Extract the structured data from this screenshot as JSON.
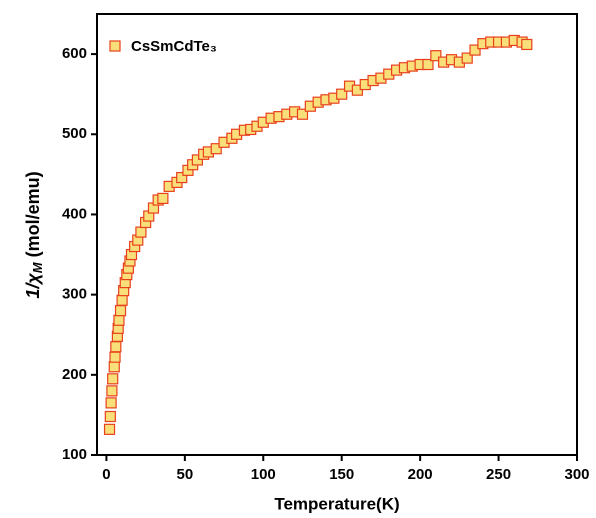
{
  "chart_data": {
    "type": "scatter",
    "xlabel": "Temperature(K)",
    "ylabel": [
      "1/χ",
      "M",
      " (mol/emu)"
    ],
    "xlim": [
      -6,
      300
    ],
    "ylim": [
      100,
      650
    ],
    "xticks": [
      0,
      50,
      100,
      150,
      200,
      250,
      300
    ],
    "yticks": [
      100,
      200,
      300,
      400,
      500,
      600
    ],
    "legend": "top-left",
    "series": [
      {
        "name": "CsSmCdTe₃",
        "color": "#f9df7a",
        "edgecolor": "#e8401c",
        "x": [
          2,
          2.5,
          3,
          3.5,
          4,
          5,
          5.5,
          6,
          7,
          7.5,
          8,
          9,
          10,
          11,
          12,
          13,
          14,
          15,
          16,
          18,
          20,
          22,
          25,
          27,
          30,
          33,
          36,
          40,
          45,
          48,
          52,
          55,
          58,
          62,
          65,
          70,
          75,
          80,
          83,
          88,
          92,
          96,
          100,
          105,
          110,
          115,
          120,
          125,
          130,
          135,
          140,
          145,
          150,
          155,
          160,
          165,
          170,
          175,
          180,
          185,
          190,
          195,
          200,
          205,
          210,
          215,
          220,
          225,
          230,
          235,
          240,
          245,
          250,
          255,
          260,
          265,
          268
        ],
        "values": [
          132,
          148,
          165,
          180,
          195,
          210,
          222,
          235,
          248,
          258,
          268,
          280,
          293,
          305,
          315,
          325,
          333,
          342,
          350,
          360,
          368,
          378,
          390,
          398,
          408,
          418,
          420,
          435,
          440,
          446,
          455,
          462,
          468,
          475,
          478,
          482,
          490,
          495,
          500,
          505,
          506,
          510,
          515,
          520,
          522,
          525,
          528,
          525,
          535,
          540,
          543,
          545,
          550,
          560,
          555,
          562,
          567,
          570,
          575,
          580,
          583,
          585,
          587,
          587,
          598,
          590,
          593,
          590,
          595,
          605,
          613,
          615,
          615,
          615,
          617,
          615,
          612
        ]
      }
    ]
  }
}
